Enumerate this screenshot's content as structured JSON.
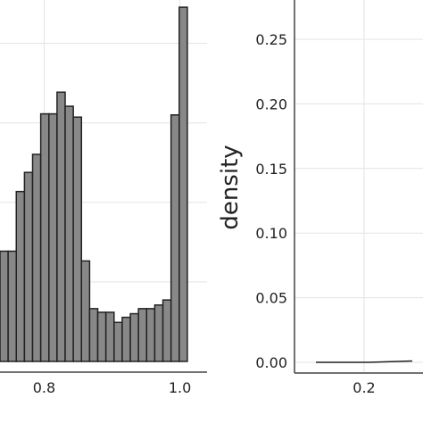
{
  "chart_data": [
    {
      "type": "bar",
      "title": "",
      "xlabel": "",
      "ylabel": "",
      "xlim": [
        0.735,
        1.04
      ],
      "ylim": [
        0,
        1
      ],
      "grid": true,
      "bar_color": "#888888",
      "bar_edge_color": "#222222",
      "x_ticks": [
        {
          "value": 0.8,
          "label": "0.8"
        },
        {
          "value": 1.0,
          "label": "1.0"
        }
      ],
      "bin_width": 0.012,
      "bins_left": [
        0.735,
        0.747,
        0.759,
        0.771,
        0.783,
        0.795,
        0.807,
        0.819,
        0.831,
        0.843,
        0.855,
        0.867,
        0.879,
        0.891,
        0.903,
        0.915,
        0.927,
        0.939,
        0.951,
        0.963,
        0.975,
        0.987,
        0.999
      ],
      "values": [
        0.305,
        0.305,
        0.47,
        0.523,
        0.573,
        0.685,
        0.685,
        0.745,
        0.706,
        0.676,
        0.278,
        0.146,
        0.136,
        0.136,
        0.108,
        0.122,
        0.132,
        0.146,
        0.146,
        0.156,
        0.17,
        0.682,
        0.98
      ],
      "axis_color": "#444444"
    },
    {
      "type": "line",
      "title": "",
      "xlabel": "",
      "ylabel": "density",
      "xlim": [
        0.135,
        0.255
      ],
      "ylim": [
        -0.008,
        0.28
      ],
      "grid": true,
      "x_ticks": [
        {
          "value": 0.2,
          "label": "0.2"
        }
      ],
      "y_ticks": [
        {
          "value": 0.0,
          "label": "0.00"
        },
        {
          "value": 0.05,
          "label": "0.05"
        },
        {
          "value": 0.1,
          "label": "0.10"
        },
        {
          "value": 0.15,
          "label": "0.15"
        },
        {
          "value": 0.2,
          "label": "0.20"
        },
        {
          "value": 0.25,
          "label": "0.25"
        }
      ],
      "series": [
        {
          "x": [
            0.155,
            0.205,
            0.245
          ],
          "y": [
            0.0,
            0.0,
            0.001
          ]
        }
      ],
      "line_color": "#222222",
      "axis_color": "#444444"
    }
  ]
}
